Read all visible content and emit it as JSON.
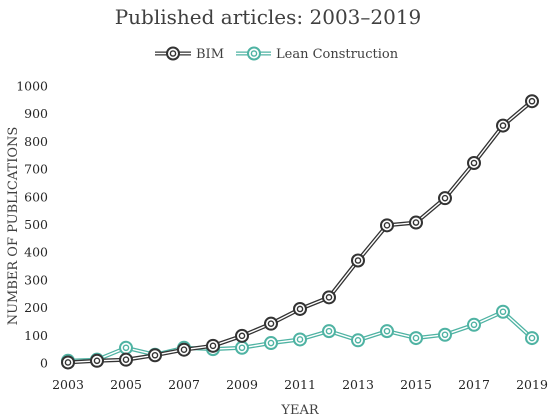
{
  "chart_data": {
    "type": "line",
    "title": "Published articles: 2003–2019",
    "xlabel": "YEAR",
    "ylabel": "NUMBER OF PUBLICATIONS",
    "ylim": [
      0,
      1000
    ],
    "yticks": [
      "0",
      "100",
      "200",
      "300",
      "400",
      "500",
      "600",
      "700",
      "800",
      "900",
      "1000"
    ],
    "x": [
      2003,
      2004,
      2005,
      2006,
      2007,
      2008,
      2009,
      2010,
      2011,
      2012,
      2013,
      2014,
      2015,
      2016,
      2017,
      2018,
      2019
    ],
    "xticks": [
      "2003",
      "2005",
      "2007",
      "2009",
      "2011",
      "2013",
      "2015",
      "2017",
      "2019"
    ],
    "grid": false,
    "legend_position": "top-center",
    "series": [
      {
        "name": "BIM",
        "color": "#333333",
        "values": [
          2,
          8,
          12,
          28,
          48,
          62,
          98,
          142,
          195,
          237,
          370,
          497,
          507,
          595,
          722,
          857,
          945
        ]
      },
      {
        "name": "Lean Construction",
        "color": "#4fb3a3",
        "values": [
          8,
          12,
          55,
          30,
          55,
          50,
          55,
          72,
          85,
          115,
          82,
          115,
          90,
          102,
          138,
          185,
          90
        ]
      }
    ]
  }
}
